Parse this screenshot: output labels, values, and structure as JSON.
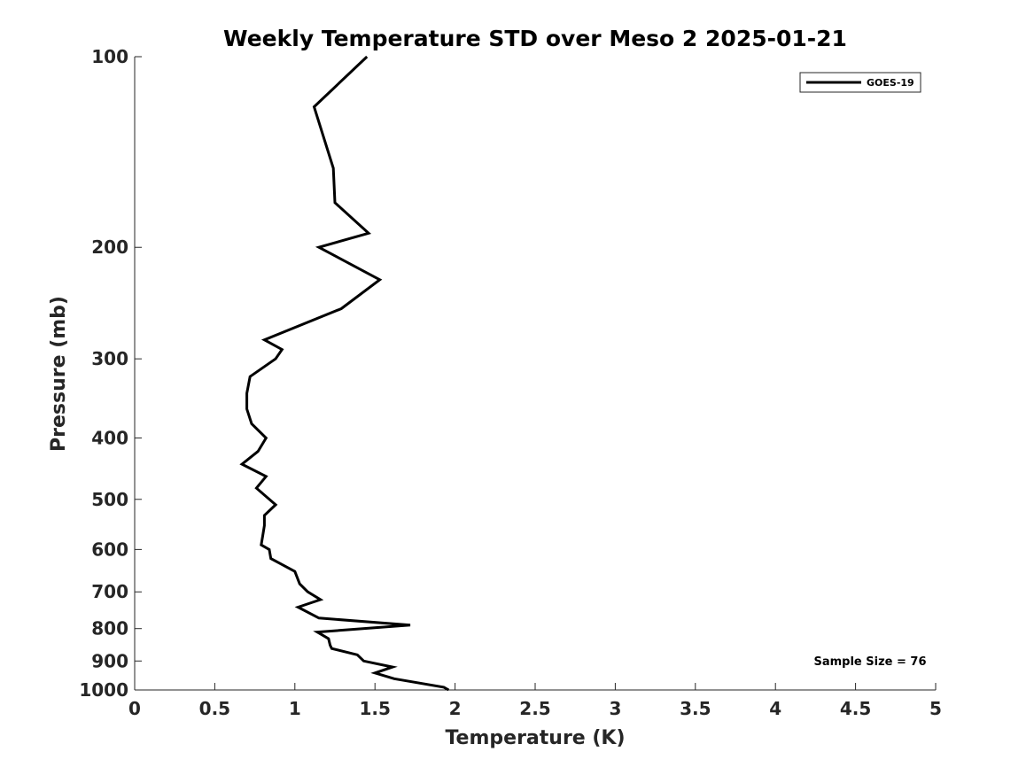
{
  "chart_data": {
    "type": "line",
    "title": "Weekly Temperature STD over Meso 2 2025-01-21",
    "xlabel": "Temperature (K)",
    "ylabel": "Pressure (mb)",
    "xlim": [
      0,
      5
    ],
    "ylim": [
      100,
      1000
    ],
    "y_scale": "log",
    "y_reversed": true,
    "grid": false,
    "legend_position": "top-right",
    "x_ticks": [
      "0",
      "0.5",
      "1",
      "1.5",
      "2",
      "2.5",
      "3",
      "3.5",
      "4",
      "4.5",
      "5"
    ],
    "y_ticks": [
      "100",
      "200",
      "300",
      "400",
      "500",
      "600",
      "700",
      "800",
      "900",
      "1000"
    ],
    "annotation": "Sample Size = 76",
    "line_color": "#000000",
    "series": [
      {
        "name": "GOES-19",
        "x": [
          1.45,
          1.12,
          1.24,
          1.25,
          1.46,
          1.15,
          1.53,
          1.29,
          0.81,
          0.92,
          0.88,
          0.72,
          0.7,
          0.7,
          0.73,
          0.82,
          0.77,
          0.67,
          0.82,
          0.76,
          0.88,
          0.81,
          0.81,
          0.8,
          0.79,
          0.84,
          0.85,
          1.0,
          1.03,
          1.08,
          1.16,
          1.02,
          1.15,
          1.72,
          1.14,
          1.21,
          1.22,
          1.23,
          1.39,
          1.43,
          1.61,
          1.5,
          1.62,
          1.93,
          1.96
        ],
        "y": [
          100,
          120,
          150,
          170,
          190,
          200,
          225,
          250,
          280,
          290,
          300,
          320,
          340,
          360,
          380,
          400,
          420,
          440,
          460,
          480,
          510,
          530,
          550,
          570,
          590,
          600,
          620,
          650,
          680,
          700,
          720,
          740,
          770,
          790,
          810,
          830,
          850,
          860,
          880,
          900,
          920,
          940,
          960,
          990,
          1000
        ]
      }
    ]
  }
}
